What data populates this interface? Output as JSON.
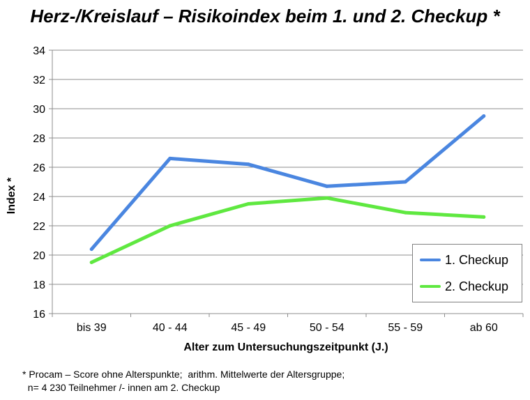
{
  "title": "Herz-/Kreislauf – Risikoindex beim 1. und 2. Checkup *",
  "footnote": {
    "line1": "* Procam – Score ohne Alterspunkte;  arithm. Mittelwerte der Altersgruppe;",
    "line2": "  n= 4 230 Teilnehmer /- innen am 2. Checkup"
  },
  "chart_data": {
    "type": "line",
    "xlabel": "Alter zum Untersuchungszeitpunkt (J.)",
    "ylabel": "Index *",
    "categories": [
      "bis 39",
      "40 - 44",
      "45 - 49",
      "50 - 54",
      "55 - 59",
      "ab 60"
    ],
    "ylim": [
      16,
      34
    ],
    "yticks": [
      16,
      18,
      20,
      22,
      24,
      26,
      28,
      30,
      32,
      34
    ],
    "grid": true,
    "legend_position": "bottom-right",
    "series": [
      {
        "name": "1. Checkup",
        "color": "#4a86e0",
        "values": [
          20.4,
          26.6,
          26.2,
          24.7,
          25.0,
          29.5
        ]
      },
      {
        "name": "2. Checkup",
        "color": "#5fe840",
        "values": [
          19.5,
          22.0,
          23.5,
          23.9,
          22.9,
          22.6
        ]
      }
    ]
  }
}
